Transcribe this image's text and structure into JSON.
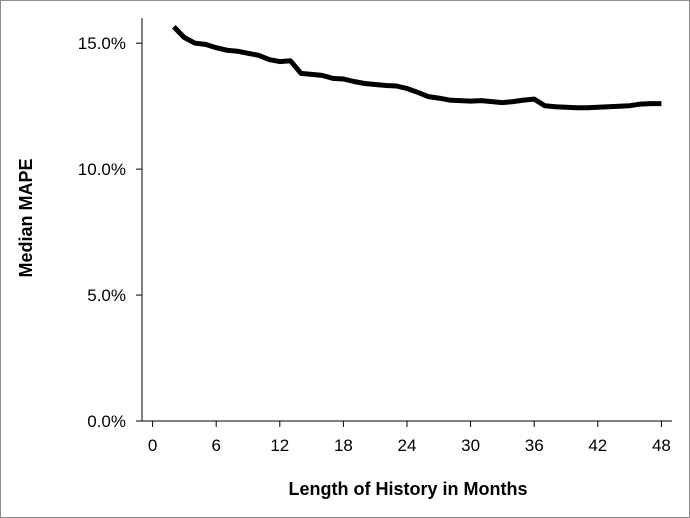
{
  "chart_data": {
    "type": "line",
    "title": "",
    "xlabel": "Length of History in Months",
    "ylabel": "Median MAPE",
    "xlim": [
      -1,
      49
    ],
    "ylim": [
      0,
      16
    ],
    "x_ticks": [
      0,
      6,
      12,
      18,
      24,
      30,
      36,
      42,
      48
    ],
    "x_tick_labels": [
      "0",
      "6",
      "12",
      "18",
      "24",
      "30",
      "36",
      "42",
      "48"
    ],
    "y_ticks": [
      0,
      5,
      10,
      15
    ],
    "y_tick_labels": [
      "0.0%",
      "5.0%",
      "10.0%",
      "15.0%"
    ],
    "grid": false,
    "line_color": "#000000",
    "series": [
      {
        "x": [
          2,
          3,
          4,
          5,
          6,
          7,
          8,
          9,
          10,
          11,
          12,
          13,
          14,
          15,
          16,
          17,
          18,
          19,
          20,
          21,
          22,
          23,
          24,
          25,
          26,
          27,
          28,
          29,
          30,
          31,
          32,
          33,
          34,
          35,
          36,
          37,
          38,
          39,
          40,
          41,
          42,
          43,
          44,
          45,
          46,
          47,
          48
        ],
        "values": [
          15.65,
          15.22,
          15.0,
          14.95,
          14.82,
          14.72,
          14.68,
          14.6,
          14.52,
          14.35,
          14.27,
          14.3,
          13.8,
          13.76,
          13.72,
          13.6,
          13.58,
          13.48,
          13.4,
          13.36,
          13.32,
          13.3,
          13.2,
          13.05,
          12.88,
          12.82,
          12.74,
          12.72,
          12.7,
          12.72,
          12.68,
          12.64,
          12.68,
          12.74,
          12.78,
          12.52,
          12.48,
          12.46,
          12.44,
          12.44,
          12.46,
          12.48,
          12.5,
          12.52,
          12.58,
          12.6,
          12.6
        ]
      }
    ]
  }
}
